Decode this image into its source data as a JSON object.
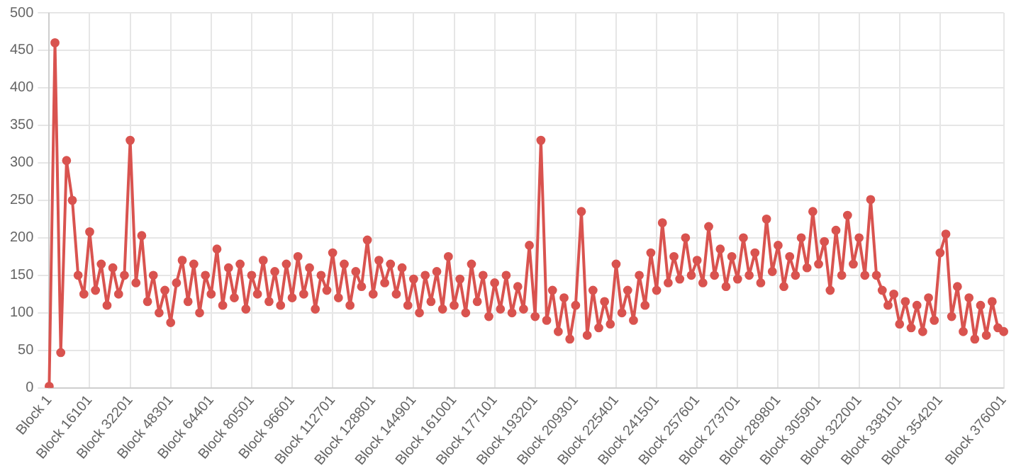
{
  "chart_data": {
    "type": "line",
    "marker": "circle",
    "grid": true,
    "line_style": "solid",
    "ylim": [
      0,
      500
    ],
    "yticks": [
      0,
      50,
      100,
      150,
      200,
      250,
      300,
      350,
      400,
      450,
      500
    ],
    "categories": [
      "Block 1",
      null,
      null,
      null,
      null,
      null,
      null,
      "Block 16101",
      null,
      null,
      null,
      null,
      null,
      null,
      "Block 32201",
      null,
      null,
      null,
      null,
      null,
      null,
      "Block 48301",
      null,
      null,
      null,
      null,
      null,
      null,
      "Block 64401",
      null,
      null,
      null,
      null,
      null,
      null,
      "Block 80501",
      null,
      null,
      null,
      null,
      null,
      null,
      "Block 96601",
      null,
      null,
      null,
      null,
      null,
      null,
      "Block 112701",
      null,
      null,
      null,
      null,
      null,
      null,
      "Block 128801",
      null,
      null,
      null,
      null,
      null,
      null,
      "Block 144901",
      null,
      null,
      null,
      null,
      null,
      null,
      "Block 161001",
      null,
      null,
      null,
      null,
      null,
      null,
      "Block 177101",
      null,
      null,
      null,
      null,
      null,
      null,
      "Block 193201",
      null,
      null,
      null,
      null,
      null,
      null,
      "Block 209301",
      null,
      null,
      null,
      null,
      null,
      null,
      "Block 225401",
      null,
      null,
      null,
      null,
      null,
      null,
      "Block 241501",
      null,
      null,
      null,
      null,
      null,
      null,
      "Block 257601",
      null,
      null,
      null,
      null,
      null,
      null,
      "Block 273701",
      null,
      null,
      null,
      null,
      null,
      null,
      "Block 289801",
      null,
      null,
      null,
      null,
      null,
      null,
      "Block 305901",
      null,
      null,
      null,
      null,
      null,
      null,
      "Block 322001",
      null,
      null,
      null,
      null,
      null,
      null,
      "Block 338101",
      null,
      null,
      null,
      null,
      null,
      null,
      "Block 354201",
      null,
      null,
      null,
      null,
      null,
      null,
      null,
      null,
      null,
      null,
      "Block 376001"
    ],
    "series": [
      {
        "color": "#d9534f",
        "values": [
          2,
          460,
          47,
          303,
          250,
          150,
          125,
          208,
          130,
          165,
          110,
          160,
          125,
          150,
          330,
          140,
          203,
          115,
          150,
          100,
          130,
          87,
          140,
          170,
          115,
          165,
          100,
          150,
          125,
          185,
          110,
          160,
          120,
          165,
          105,
          150,
          125,
          170,
          115,
          155,
          110,
          165,
          120,
          175,
          125,
          160,
          105,
          150,
          130,
          180,
          120,
          165,
          110,
          155,
          135,
          197,
          125,
          170,
          140,
          165,
          125,
          160,
          110,
          145,
          100,
          150,
          115,
          155,
          105,
          175,
          110,
          145,
          100,
          165,
          115,
          150,
          95,
          140,
          105,
          150,
          100,
          135,
          105,
          190,
          95,
          330,
          90,
          130,
          75,
          120,
          65,
          110,
          235,
          70,
          130,
          80,
          115,
          85,
          165,
          100,
          130,
          90,
          150,
          110,
          180,
          130,
          220,
          140,
          175,
          145,
          200,
          150,
          170,
          140,
          215,
          150,
          185,
          135,
          175,
          145,
          200,
          150,
          180,
          140,
          225,
          155,
          190,
          135,
          175,
          150,
          200,
          160,
          235,
          165,
          195,
          130,
          210,
          150,
          230,
          165,
          200,
          150,
          251,
          150,
          130,
          110,
          125,
          85,
          115,
          80,
          110,
          75,
          120,
          90,
          180,
          205,
          95,
          135,
          75,
          120,
          65,
          110,
          70,
          115,
          80,
          75
        ]
      }
    ]
  }
}
